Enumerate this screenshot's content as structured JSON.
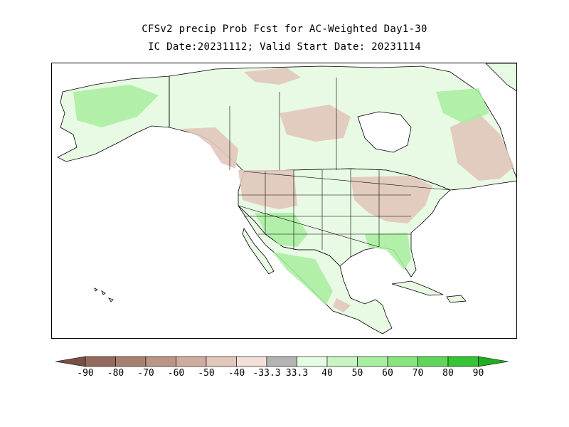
{
  "title": {
    "line1": "CFSv2 precip Prob Fcst for AC-Weighted Day1-30",
    "line2": "IC Date:20231112; Valid Start Date: 20231114"
  },
  "colors": {
    "below": [
      "#7a5045",
      "#946a5c",
      "#a8806f",
      "#bb9585",
      "#cfac9e",
      "#e1c6bb",
      "#f2e1da"
    ],
    "neutral": "#b4b4b4",
    "above": [
      "#e6fbe3",
      "#c8f5c1",
      "#a8eea0",
      "#88e57e",
      "#5fd659",
      "#34c434",
      "#1eae1e"
    ],
    "land_base": "#e8f9e4",
    "water": "#ffffff",
    "border": "#000000"
  },
  "legend": {
    "ticks": [
      "-90",
      "-80",
      "-70",
      "-60",
      "-50",
      "-40",
      "-33.3",
      "33.3",
      "40",
      "50",
      "60",
      "70",
      "80",
      "90"
    ]
  }
}
